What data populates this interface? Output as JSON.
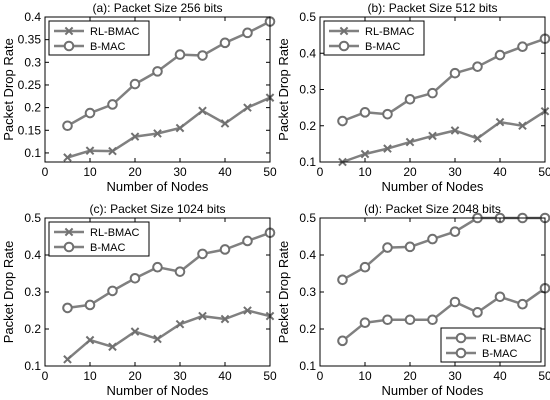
{
  "chart_data": [
    {
      "type": "line",
      "title": "(a): Packet Size 256 bits",
      "xlabel": "Number of Nodes",
      "ylabel": "Packet Drop Rate",
      "xlim": [
        0,
        50
      ],
      "ylim": [
        0.08,
        0.4
      ],
      "xticks": [
        "0",
        "10",
        "20",
        "30",
        "40",
        "50"
      ],
      "yticks": [
        "0.1",
        "0.15",
        "0.2",
        "0.25",
        "0.3",
        "0.35",
        "0.4"
      ],
      "x": [
        5,
        10,
        15,
        20,
        25,
        30,
        35,
        40,
        45,
        50
      ],
      "legend_position": "top-left",
      "series": [
        {
          "name": "RL-BMAC",
          "marker": "x",
          "values": [
            0.09,
            0.105,
            0.104,
            0.136,
            0.143,
            0.155,
            0.193,
            0.165,
            0.2,
            0.222
          ]
        },
        {
          "name": "B-MAC",
          "marker": "o",
          "values": [
            0.16,
            0.188,
            0.207,
            0.252,
            0.28,
            0.317,
            0.315,
            0.343,
            0.365,
            0.39
          ]
        }
      ]
    },
    {
      "type": "line",
      "title": "(b): Packet Size 512 bits",
      "xlabel": "Number of Nodes",
      "ylabel": "Packet Drop Rate",
      "xlim": [
        0,
        50
      ],
      "ylim": [
        0.1,
        0.5
      ],
      "xticks": [
        "0",
        "10",
        "20",
        "30",
        "40",
        "50"
      ],
      "yticks": [
        "0.1",
        "0.2",
        "0.3",
        "0.4",
        "0.5"
      ],
      "x": [
        5,
        10,
        15,
        20,
        25,
        30,
        35,
        40,
        45,
        50
      ],
      "legend_position": "top-left",
      "series": [
        {
          "name": "RL-BMAC",
          "marker": "x",
          "values": [
            0.1,
            0.122,
            0.137,
            0.155,
            0.172,
            0.187,
            0.165,
            0.21,
            0.2,
            0.24
          ]
        },
        {
          "name": "B-MAC",
          "marker": "o",
          "values": [
            0.213,
            0.237,
            0.232,
            0.273,
            0.29,
            0.345,
            0.363,
            0.395,
            0.418,
            0.44
          ]
        }
      ]
    },
    {
      "type": "line",
      "title": "(c): Packet Size 1024 bits",
      "xlabel": "Number of Nodes",
      "ylabel": "Packet Drop Rate",
      "xlim": [
        0,
        50
      ],
      "ylim": [
        0.1,
        0.5
      ],
      "xticks": [
        "0",
        "10",
        "20",
        "30",
        "40",
        "50"
      ],
      "yticks": [
        "0.1",
        "0.2",
        "0.3",
        "0.4",
        "0.5"
      ],
      "x": [
        5,
        10,
        15,
        20,
        25,
        30,
        35,
        40,
        45,
        50
      ],
      "legend_position": "top-left",
      "series": [
        {
          "name": "RL-BMAC",
          "marker": "x",
          "values": [
            0.118,
            0.17,
            0.152,
            0.193,
            0.173,
            0.213,
            0.235,
            0.227,
            0.25,
            0.235
          ]
        },
        {
          "name": "B-MAC",
          "marker": "o",
          "values": [
            0.257,
            0.265,
            0.303,
            0.337,
            0.367,
            0.355,
            0.403,
            0.415,
            0.438,
            0.46
          ]
        }
      ]
    },
    {
      "type": "line",
      "title": "(d): Packet Size 2048 bits",
      "xlabel": "Number of Nodes",
      "ylabel": "Packet Drop Rate",
      "xlim": [
        0,
        50
      ],
      "ylim": [
        0.1,
        0.5
      ],
      "xticks": [
        "0",
        "10",
        "20",
        "30",
        "40",
        "50"
      ],
      "yticks": [
        "0.1",
        "0.2",
        "0.3",
        "0.4",
        "0.5"
      ],
      "x": [
        5,
        10,
        15,
        20,
        25,
        30,
        35,
        40,
        45,
        50
      ],
      "legend_position": "bottom-right",
      "series": [
        {
          "name": "RL-BMAC",
          "marker": "o",
          "values": [
            0.168,
            0.217,
            0.225,
            0.225,
            0.225,
            0.273,
            0.245,
            0.287,
            0.267,
            0.31
          ]
        },
        {
          "name": "B-MAC",
          "marker": "o",
          "values": [
            0.333,
            0.367,
            0.42,
            0.422,
            0.443,
            0.463,
            0.5,
            0.5,
            0.5,
            0.5
          ]
        }
      ]
    }
  ],
  "colors": {
    "series_line": "#808080",
    "marker_stroke": "#707070",
    "axes": "#000000",
    "background": "#ffffff"
  }
}
